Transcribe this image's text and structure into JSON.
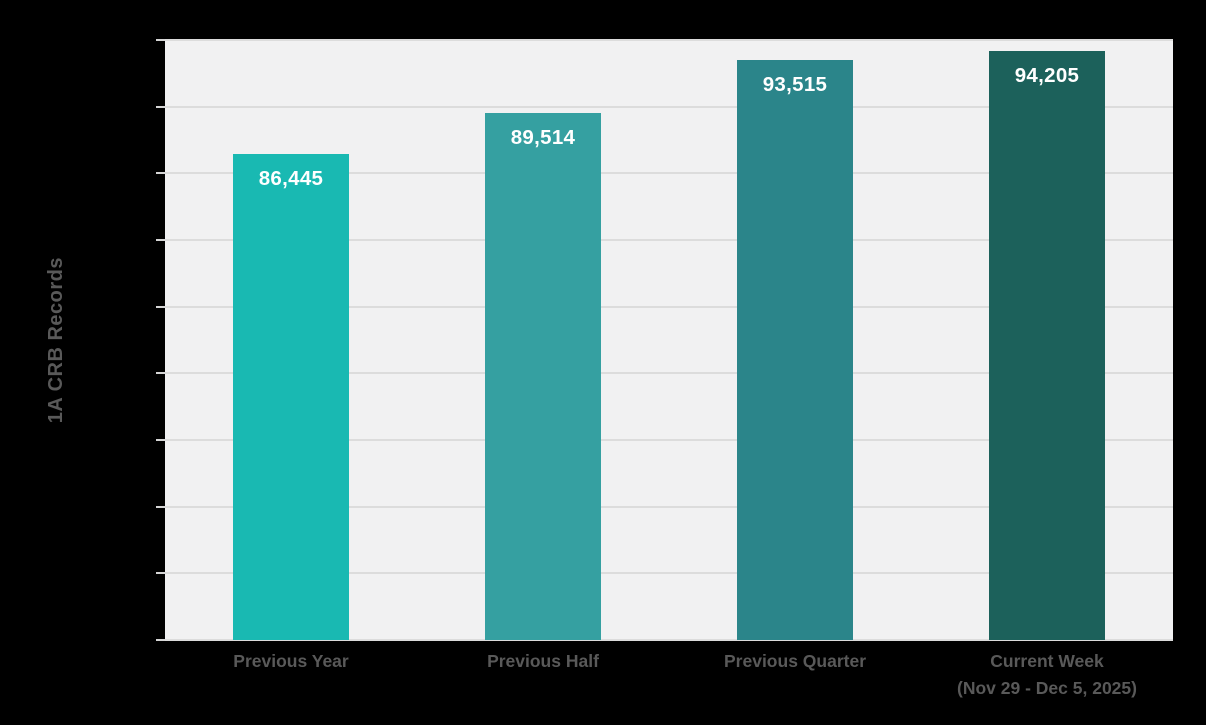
{
  "page": {
    "background": "#000000"
  },
  "chart_data": {
    "type": "bar",
    "title": "",
    "xlabel": "",
    "ylabel": "1A CRB Records",
    "categories": [
      {
        "line1": "Previous Year",
        "line2": ""
      },
      {
        "line1": "Previous Half",
        "line2": ""
      },
      {
        "line1": "Previous Quarter",
        "line2": ""
      },
      {
        "line1": "Current Week",
        "line2": "(Nov 29 - Dec 5, 2025)"
      }
    ],
    "values": [
      86445,
      89514,
      93515,
      94205
    ],
    "value_labels": [
      "86,445",
      "89,514",
      "93,515",
      "94,205"
    ],
    "bar_colors": [
      "#19B9B2",
      "#35A0A1",
      "#2B858A",
      "#1C615B"
    ],
    "ylim": [
      50000,
      95000
    ],
    "ytick_step": 5000,
    "ytick_count": 10,
    "ytick_labels_visible": false,
    "grid": true,
    "legend_position": "none",
    "plot_background": "#F1F1F2",
    "gridline_color": "#DCDCDC",
    "tick_color": "#D5D5D5",
    "value_label_color": "#FFFFFF",
    "category_label_color": "#595959",
    "axis_title_color": "#595959"
  }
}
